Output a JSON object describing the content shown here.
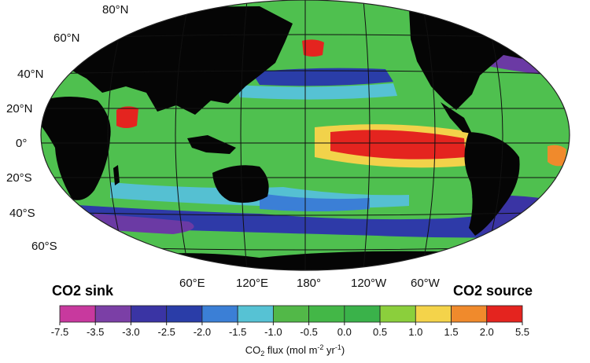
{
  "map": {
    "latitude_labels": [
      "80°N",
      "60°N",
      "40°N",
      "20°N",
      "0°",
      "20°S",
      "40°S",
      "60°S"
    ],
    "longitude_labels": [
      "60°E",
      "120°E",
      "180°",
      "120°W",
      "60°W"
    ],
    "left_annotation": "CO2 sink",
    "right_annotation": "CO2 source",
    "colors": {
      "land": "#050505",
      "ocean_base": "#4fc04f",
      "grid": "#111111"
    }
  },
  "colorbar": {
    "ticks": [
      "-7.5",
      "-3.5",
      "-3.0",
      "-2.5",
      "-2.0",
      "-1.5",
      "-1.0",
      "-0.5",
      "0.0",
      "0.5",
      "1.0",
      "1.5",
      "2.0",
      "5.5"
    ],
    "colors": [
      "#c8399e",
      "#7b3fa6",
      "#3a34a4",
      "#2a3da8",
      "#3b7fd6",
      "#56c2d4",
      "#52b848",
      "#43b747",
      "#3ab24a",
      "#8bcf3c",
      "#f4d34a",
      "#f08a2c",
      "#e4241f"
    ],
    "label_prefix": "CO",
    "label_sub": "2",
    "label_mid": " flux (mol m",
    "label_sup1": "-2",
    "label_mid2": " yr",
    "label_sup2": "-1",
    "label_end": ")"
  }
}
